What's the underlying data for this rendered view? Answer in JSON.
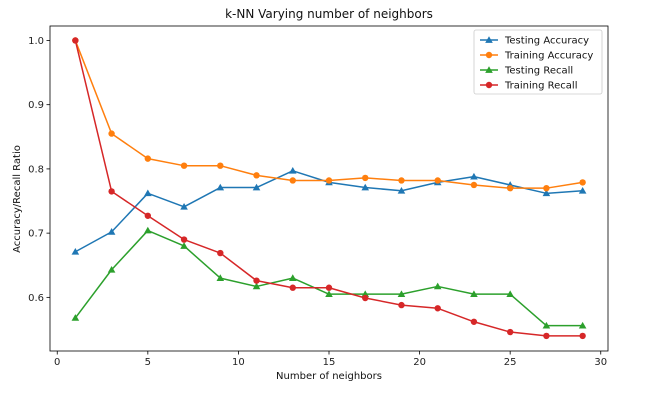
{
  "chart_data": {
    "type": "line",
    "title": "k-NN Varying number of neighbors",
    "xlabel": "Number of neighbors",
    "ylabel": "Accuracy/Recall Ratio",
    "xlim": [
      -0.4,
      30.4
    ],
    "ylim": [
      0.5165,
      1.0225
    ],
    "xticks": [
      0,
      5,
      10,
      15,
      20,
      25,
      30
    ],
    "yticks": [
      0.6,
      0.7,
      0.8,
      0.9,
      1.0
    ],
    "xtick_labels": [
      "0",
      "5",
      "10",
      "15",
      "20",
      "25",
      "30"
    ],
    "ytick_labels": [
      "0.6",
      "0.7",
      "0.8",
      "0.9",
      "1.0"
    ],
    "grid": false,
    "legend_position": "top-right",
    "x": [
      1,
      3,
      5,
      7,
      9,
      11,
      13,
      15,
      17,
      19,
      21,
      23,
      25,
      27,
      29
    ],
    "series": [
      {
        "name": "Testing Accuracy",
        "color": "#1f77b4",
        "marker": "triangle",
        "values": [
          0.671,
          0.702,
          0.762,
          0.741,
          0.771,
          0.771,
          0.797,
          0.779,
          0.771,
          0.766,
          0.779,
          0.788,
          0.775,
          0.762,
          0.766
        ]
      },
      {
        "name": "Training Accuracy",
        "color": "#ff7f0e",
        "marker": "circle",
        "values": [
          1.0,
          0.855,
          0.816,
          0.805,
          0.805,
          0.79,
          0.782,
          0.782,
          0.786,
          0.782,
          0.782,
          0.775,
          0.77,
          0.77,
          0.779
        ]
      },
      {
        "name": "Testing Recall",
        "color": "#2ca02c",
        "marker": "triangle",
        "values": [
          0.568,
          0.643,
          0.704,
          0.68,
          0.63,
          0.617,
          0.63,
          0.605,
          0.605,
          0.605,
          0.617,
          0.605,
          0.605,
          0.556,
          0.556
        ]
      },
      {
        "name": "Training Recall",
        "color": "#d62728",
        "marker": "circle",
        "values": [
          1.0,
          0.765,
          0.727,
          0.69,
          0.669,
          0.626,
          0.615,
          0.615,
          0.599,
          0.588,
          0.583,
          0.562,
          0.546,
          0.54,
          0.54
        ]
      }
    ]
  }
}
